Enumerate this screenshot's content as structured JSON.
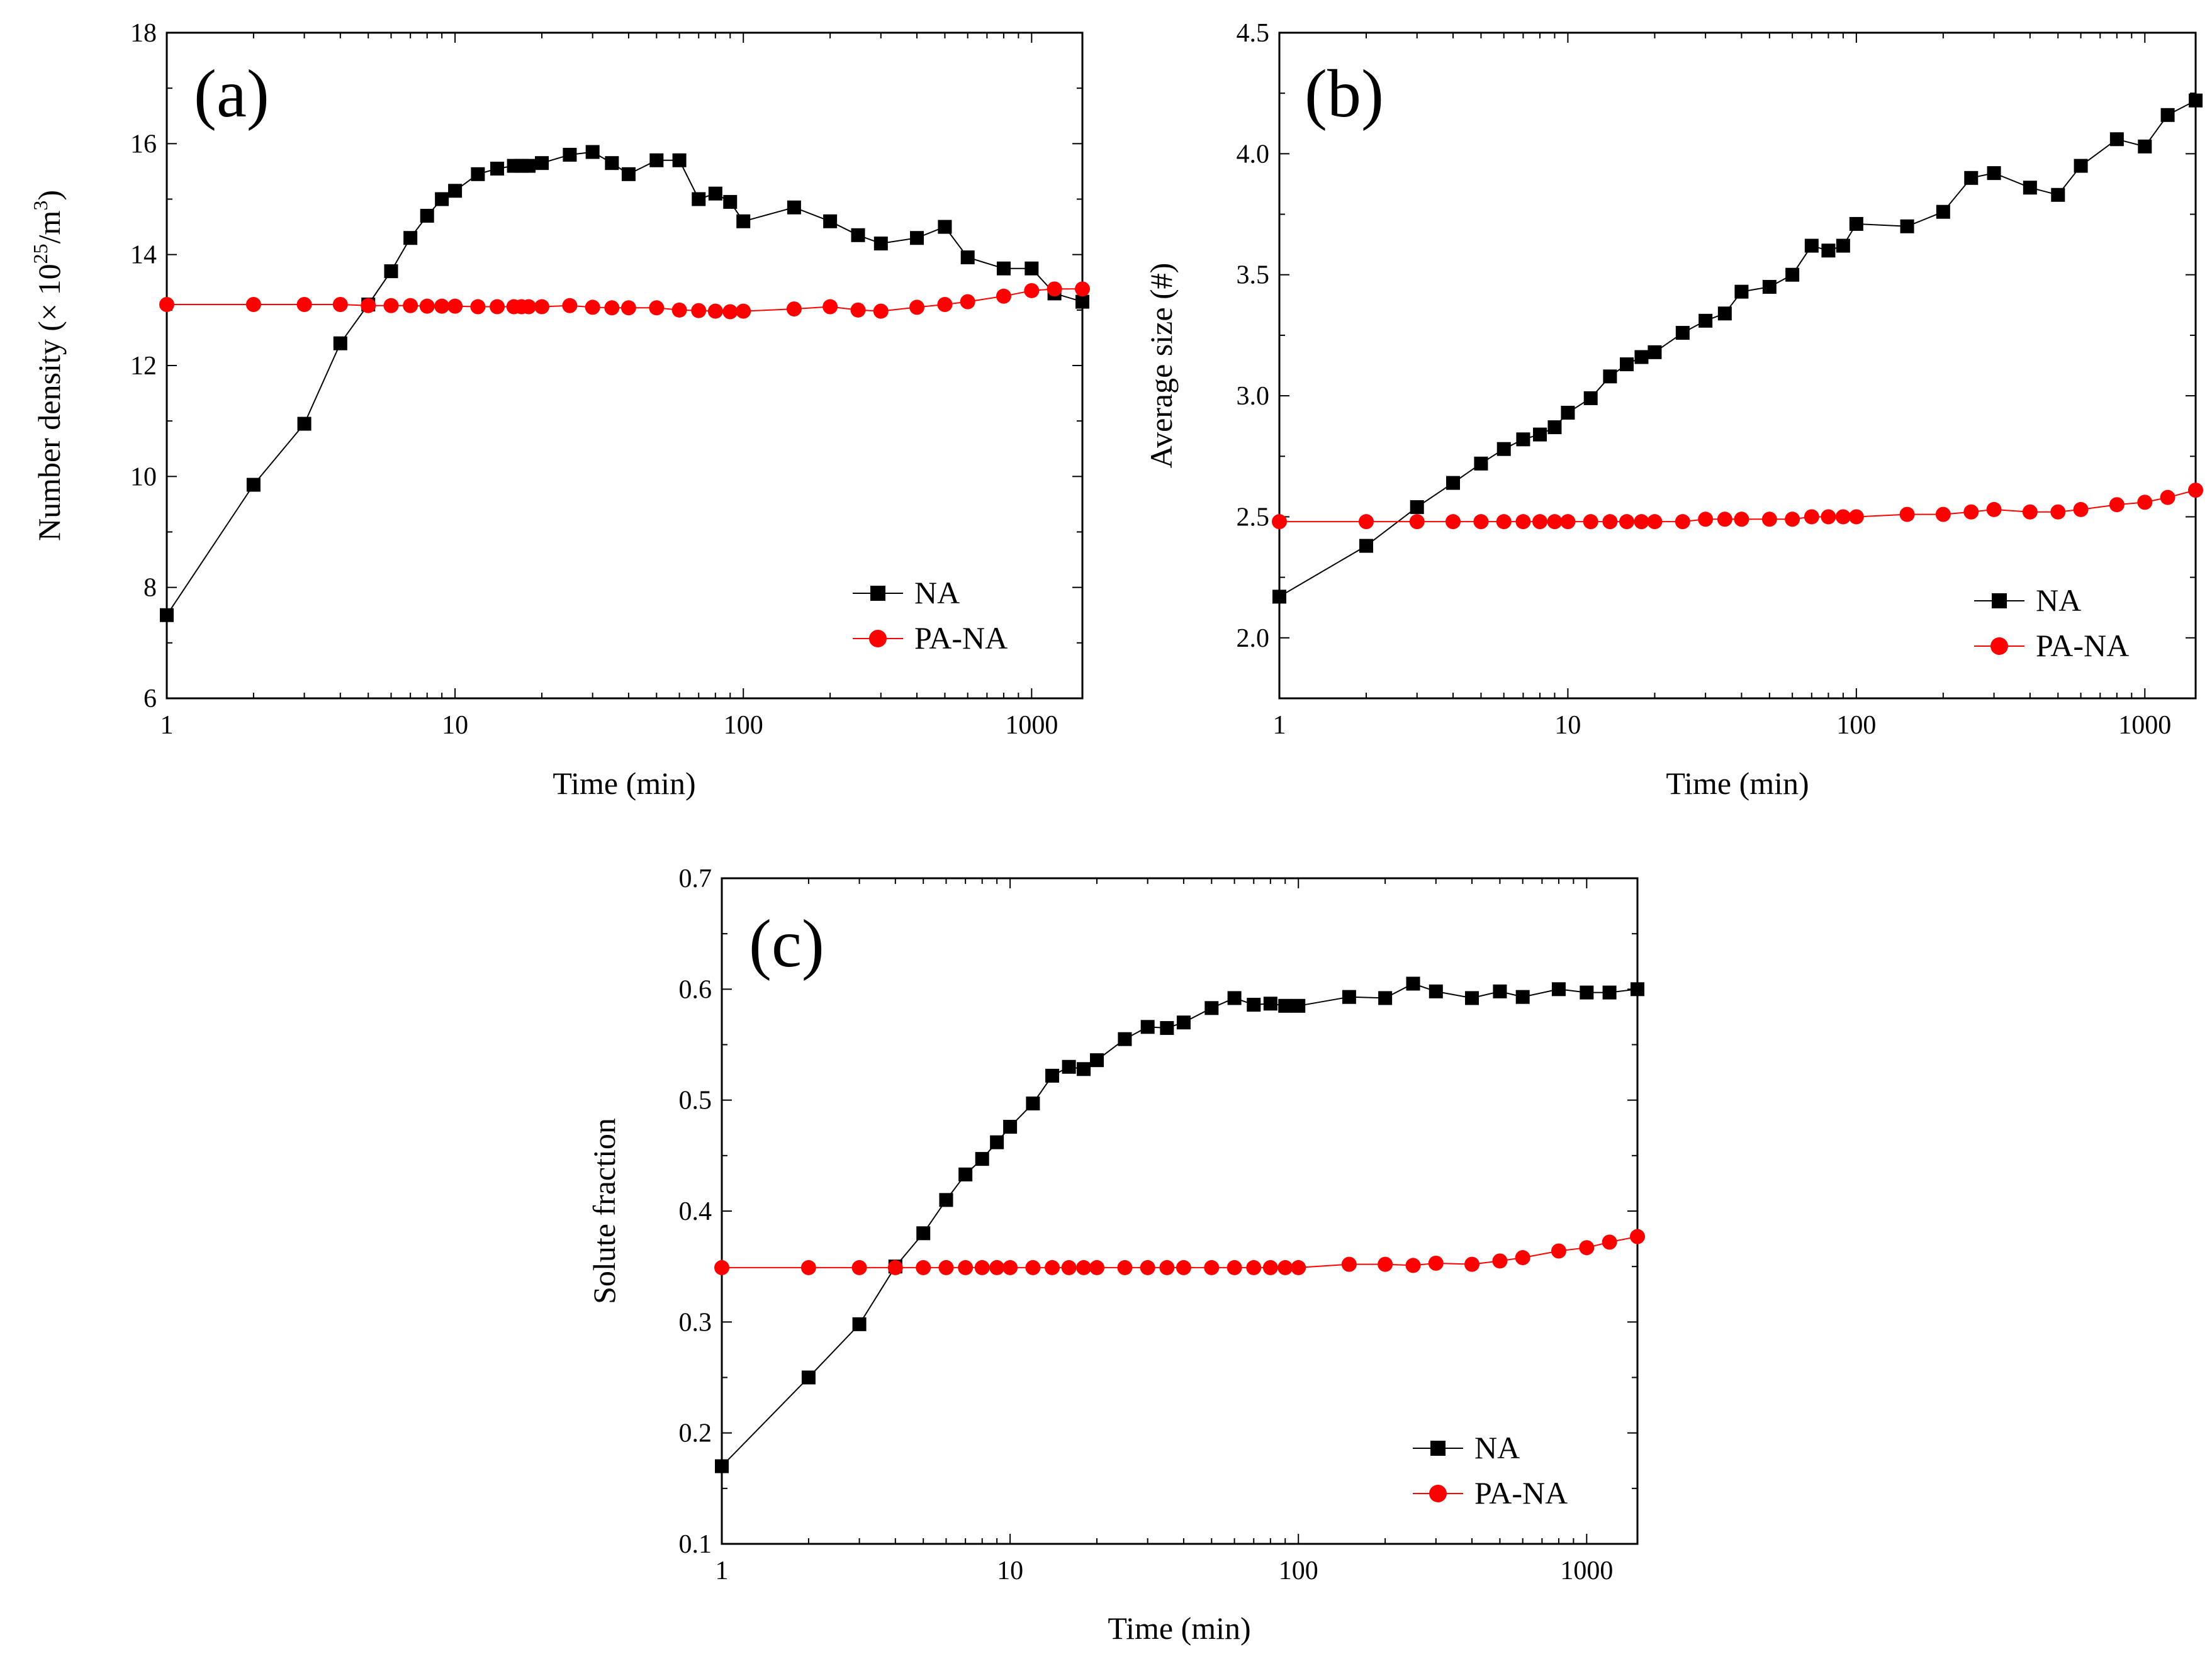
{
  "colors": {
    "na": "#000000",
    "pa_na": "#ff0000",
    "axis": "#000000"
  },
  "chart_data": [
    {
      "type": "line",
      "panel_label": "(a)",
      "xlabel": "Time (min)",
      "ylabel_prefix": "Number density (× 10",
      "ylabel_exp1": "25",
      "ylabel_mid": "/m",
      "ylabel_exp2": "3",
      "ylabel_suffix": ")",
      "xscale": "log",
      "xlim": [
        1,
        1500
      ],
      "ylim": [
        6,
        18
      ],
      "xticks": [
        1,
        10,
        100,
        1000
      ],
      "xtick_labels": [
        "1",
        "10",
        "100",
        "1000"
      ],
      "yticks": [
        6,
        8,
        10,
        12,
        14,
        16,
        18
      ],
      "ytick_labels": [
        "6",
        "8",
        "10",
        "12",
        "14",
        "16",
        "18"
      ],
      "legend_position": "bottom-right",
      "series": [
        {
          "name": "NA",
          "marker": "square",
          "color": "#000000",
          "x": [
            1,
            2,
            3,
            4,
            5,
            6,
            7,
            8,
            9,
            10,
            12,
            14,
            16,
            17,
            18,
            20,
            25,
            30,
            35,
            40,
            50,
            60,
            70,
            80,
            90,
            100,
            150,
            200,
            250,
            300,
            400,
            500,
            600,
            800,
            1000,
            1200,
            1500
          ],
          "y": [
            7.5,
            9.85,
            10.95,
            12.4,
            13.1,
            13.7,
            14.3,
            14.7,
            15.0,
            15.15,
            15.45,
            15.55,
            15.6,
            15.6,
            15.6,
            15.65,
            15.8,
            15.85,
            15.65,
            15.45,
            15.7,
            15.7,
            15.0,
            15.1,
            14.95,
            14.6,
            14.85,
            14.6,
            14.35,
            14.2,
            14.3,
            14.5,
            13.95,
            13.75,
            13.75,
            13.3,
            13.15
          ]
        },
        {
          "name": "PA-NA",
          "marker": "circle",
          "color": "#ff0000",
          "x": [
            1,
            2,
            3,
            4,
            5,
            6,
            7,
            8,
            9,
            10,
            12,
            14,
            16,
            17,
            18,
            20,
            25,
            30,
            35,
            40,
            50,
            60,
            70,
            80,
            90,
            100,
            150,
            200,
            250,
            300,
            400,
            500,
            600,
            800,
            1000,
            1200,
            1500
          ],
          "y": [
            13.1,
            13.1,
            13.1,
            13.1,
            13.08,
            13.08,
            13.08,
            13.07,
            13.07,
            13.07,
            13.06,
            13.06,
            13.06,
            13.06,
            13.06,
            13.06,
            13.08,
            13.05,
            13.04,
            13.04,
            13.04,
            13.0,
            12.99,
            12.98,
            12.97,
            12.98,
            13.02,
            13.06,
            13.0,
            12.98,
            13.05,
            13.1,
            13.15,
            13.25,
            13.35,
            13.38,
            13.38
          ]
        }
      ]
    },
    {
      "type": "line",
      "panel_label": "(b)",
      "xlabel": "Time (min)",
      "ylabel": "Average size (#)",
      "xscale": "log",
      "xlim": [
        1,
        1500
      ],
      "ylim": [
        1.75,
        4.5
      ],
      "xticks": [
        1,
        10,
        100,
        1000
      ],
      "xtick_labels": [
        "1",
        "10",
        "100",
        "1000"
      ],
      "yticks": [
        2.0,
        2.5,
        3.0,
        3.5,
        4.0,
        4.5
      ],
      "ytick_labels": [
        "2.0",
        "2.5",
        "3.0",
        "3.5",
        "4.0",
        "4.5"
      ],
      "legend_position": "bottom-right",
      "series": [
        {
          "name": "NA",
          "marker": "square",
          "color": "#000000",
          "x": [
            1,
            2,
            3,
            4,
            5,
            6,
            7,
            8,
            9,
            10,
            12,
            14,
            16,
            18,
            20,
            25,
            30,
            35,
            40,
            50,
            60,
            70,
            80,
            90,
            100,
            150,
            200,
            250,
            300,
            400,
            500,
            600,
            800,
            1000,
            1200,
            1500
          ],
          "y": [
            2.17,
            2.38,
            2.54,
            2.64,
            2.72,
            2.78,
            2.82,
            2.84,
            2.87,
            2.93,
            2.99,
            3.08,
            3.13,
            3.16,
            3.18,
            3.26,
            3.31,
            3.34,
            3.43,
            3.45,
            3.5,
            3.62,
            3.6,
            3.62,
            3.71,
            3.7,
            3.76,
            3.9,
            3.92,
            3.86,
            3.83,
            3.95,
            4.06,
            4.03,
            4.16,
            4.22
          ]
        },
        {
          "name": "PA-NA",
          "marker": "circle",
          "color": "#ff0000",
          "x": [
            1,
            2,
            3,
            4,
            5,
            6,
            7,
            8,
            9,
            10,
            12,
            14,
            16,
            18,
            20,
            25,
            30,
            35,
            40,
            50,
            60,
            70,
            80,
            90,
            100,
            150,
            200,
            250,
            300,
            400,
            500,
            600,
            800,
            1000,
            1200,
            1500
          ],
          "y": [
            2.48,
            2.48,
            2.48,
            2.48,
            2.48,
            2.48,
            2.48,
            2.48,
            2.48,
            2.48,
            2.48,
            2.48,
            2.48,
            2.48,
            2.48,
            2.48,
            2.49,
            2.49,
            2.49,
            2.49,
            2.49,
            2.5,
            2.5,
            2.5,
            2.5,
            2.51,
            2.51,
            2.52,
            2.53,
            2.52,
            2.52,
            2.53,
            2.55,
            2.56,
            2.58,
            2.61
          ]
        }
      ]
    },
    {
      "type": "line",
      "panel_label": "(c)",
      "xlabel": "Time (min)",
      "ylabel": "Solute fraction",
      "xscale": "log",
      "xlim": [
        1,
        1500
      ],
      "ylim": [
        0.1,
        0.7
      ],
      "xticks": [
        1,
        10,
        100,
        1000
      ],
      "xtick_labels": [
        "1",
        "10",
        "100",
        "1000"
      ],
      "yticks": [
        0.1,
        0.2,
        0.3,
        0.4,
        0.5,
        0.6,
        0.7
      ],
      "ytick_labels": [
        "0.1",
        "0.2",
        "0.3",
        "0.4",
        "0.5",
        "0.6",
        "0.7"
      ],
      "legend_position": "bottom-right",
      "series": [
        {
          "name": "NA",
          "marker": "square",
          "color": "#000000",
          "x": [
            1,
            2,
            3,
            4,
            5,
            6,
            7,
            8,
            9,
            10,
            12,
            14,
            16,
            18,
            20,
            25,
            30,
            35,
            40,
            50,
            60,
            70,
            80,
            90,
            100,
            150,
            200,
            250,
            300,
            400,
            500,
            600,
            800,
            1000,
            1200,
            1500
          ],
          "y": [
            0.17,
            0.25,
            0.298,
            0.35,
            0.38,
            0.41,
            0.433,
            0.447,
            0.462,
            0.476,
            0.497,
            0.522,
            0.53,
            0.528,
            0.536,
            0.555,
            0.566,
            0.565,
            0.57,
            0.583,
            0.592,
            0.586,
            0.587,
            0.585,
            0.585,
            0.593,
            0.592,
            0.605,
            0.598,
            0.592,
            0.598,
            0.593,
            0.6,
            0.597,
            0.597,
            0.6
          ]
        },
        {
          "name": "PA-NA",
          "marker": "circle",
          "color": "#ff0000",
          "x": [
            1,
            2,
            3,
            4,
            5,
            6,
            7,
            8,
            9,
            10,
            12,
            14,
            16,
            18,
            20,
            25,
            30,
            35,
            40,
            50,
            60,
            70,
            80,
            90,
            100,
            150,
            200,
            250,
            300,
            400,
            500,
            600,
            800,
            1000,
            1200,
            1500
          ],
          "y": [
            0.349,
            0.349,
            0.349,
            0.349,
            0.349,
            0.349,
            0.349,
            0.349,
            0.349,
            0.349,
            0.349,
            0.349,
            0.349,
            0.349,
            0.349,
            0.349,
            0.349,
            0.349,
            0.349,
            0.349,
            0.349,
            0.349,
            0.349,
            0.349,
            0.349,
            0.352,
            0.352,
            0.351,
            0.353,
            0.352,
            0.355,
            0.358,
            0.364,
            0.367,
            0.372,
            0.377
          ]
        }
      ]
    }
  ]
}
